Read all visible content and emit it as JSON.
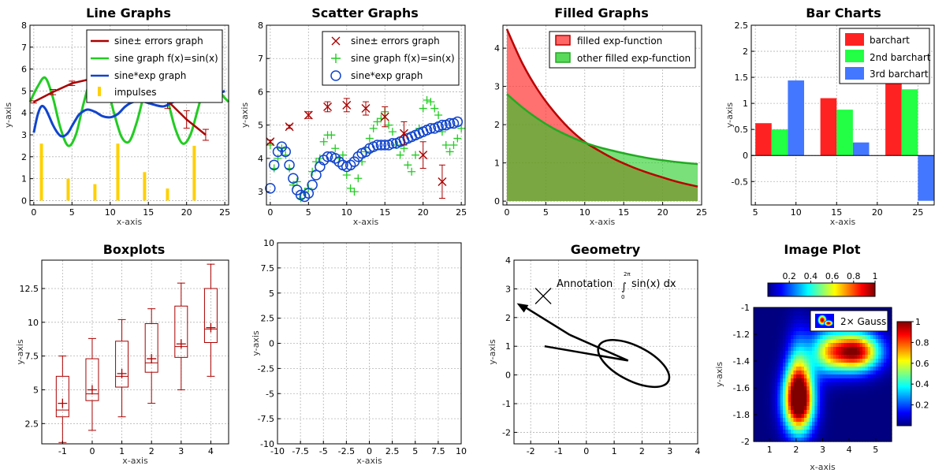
{
  "chart_data": [
    {
      "type": "line",
      "title": "Line Graphs",
      "xlabel": "x-axis",
      "ylabel": "y-axis",
      "xlim": [
        -0.5,
        25.5
      ],
      "ylim": [
        -0.2,
        8
      ],
      "xticks": [
        0,
        5,
        10,
        15,
        20,
        25
      ],
      "yticks": [
        0,
        1,
        2,
        3,
        4,
        5,
        6,
        7,
        8
      ],
      "grid": true,
      "legend": "top-right",
      "legend_entries": [
        "sine± errors graph",
        "sine graph f(x)=sin(x)",
        "sine*exp graph",
        "impulses"
      ],
      "colors": [
        "#aa0000",
        "#22cc22",
        "#1144cc",
        "#ffd000"
      ],
      "series": [
        {
          "name": "sine± errors graph",
          "x": [
            0,
            2.5,
            5,
            7.5,
            10,
            12.5,
            15,
            17.5,
            20,
            22.5
          ],
          "y": [
            4.5,
            4.95,
            5.35,
            5.55,
            5.5,
            5.25,
            4.95,
            4.55,
            3.7,
            3.0
          ],
          "err": [
            0.05,
            0.12,
            0.1,
            0.15,
            0.2,
            0.25,
            0.3,
            0.35,
            0.4,
            0.25
          ]
        },
        {
          "name": "sine graph f(x)=sin(x)",
          "x": [
            -0.5,
            0.5,
            1.5,
            2.5,
            3.5,
            4.5,
            5.5,
            6.5,
            7.5,
            8.5,
            9.5,
            10.5,
            11.5,
            12.5,
            13.5,
            14.5,
            15.5,
            16.5,
            17.5,
            18.5,
            19.5,
            20.5,
            21.5,
            22.5,
            23.5,
            24.5,
            25.5
          ],
          "y": [
            4.5,
            5.2,
            5.6,
            4.7,
            3.3,
            2.5,
            3.0,
            4.4,
            5.6,
            5.9,
            5.3,
            4.0,
            2.9,
            2.7,
            3.6,
            4.9,
            5.7,
            5.6,
            4.6,
            3.3,
            2.6,
            3.0,
            4.2,
            5.4,
            5.6,
            4.9,
            4.5
          ]
        },
        {
          "name": "sine*exp graph",
          "x": [
            0,
            0.5,
            1,
            1.5,
            2,
            2.5,
            3,
            3.5,
            4,
            4.5,
            5,
            5.5,
            6,
            7,
            8,
            9,
            10,
            11,
            12,
            13,
            14,
            15,
            16,
            17,
            18,
            19,
            20,
            21,
            22,
            23,
            24,
            25
          ],
          "y": [
            3.1,
            3.9,
            4.3,
            4.2,
            3.85,
            3.45,
            3.15,
            2.95,
            2.95,
            3.1,
            3.4,
            3.7,
            3.95,
            4.15,
            4.05,
            3.85,
            3.8,
            3.95,
            4.3,
            4.5,
            4.55,
            4.45,
            4.35,
            4.3,
            4.45,
            4.65,
            4.8,
            4.85,
            4.8,
            4.75,
            4.85,
            5.0
          ]
        },
        {
          "name": "impulses",
          "x": [
            1,
            4.5,
            8,
            11,
            14.5,
            17.5,
            21
          ],
          "y": [
            2.6,
            1.0,
            0.75,
            2.6,
            1.3,
            0.55,
            2.5
          ]
        }
      ]
    },
    {
      "type": "scatter",
      "title": "Scatter Graphs",
      "xlabel": "x-axis",
      "ylabel": "y-axis",
      "xlim": [
        -0.5,
        25.5
      ],
      "ylim": [
        2.6,
        8
      ],
      "xticks": [
        0,
        5,
        10,
        15,
        20,
        25
      ],
      "yticks": [
        3,
        4,
        5,
        6,
        7,
        8
      ],
      "grid": true,
      "legend": "top-right",
      "legend_entries": [
        "sine± errors graph",
        "sine graph f(x)=sin(x)",
        "sine*exp graph"
      ],
      "colors": [
        "#aa0000",
        "#22cc22",
        "#1144cc"
      ],
      "series": [
        {
          "name": "sine± errors graph",
          "x": [
            0,
            2.5,
            5,
            7.5,
            10,
            12.5,
            15,
            17.5,
            20,
            22.5
          ],
          "y": [
            4.5,
            4.95,
            5.3,
            5.55,
            5.6,
            5.5,
            5.25,
            4.75,
            4.1,
            3.3
          ],
          "err": [
            0.05,
            0.05,
            0.1,
            0.15,
            0.2,
            0.2,
            0.3,
            0.35,
            0.4,
            0.5
          ]
        },
        {
          "name": "sine graph f(x)=sin(x)",
          "x": [
            0,
            0.5,
            1,
            1.5,
            2,
            2.5,
            3,
            3.5,
            4,
            4.5,
            5,
            5.5,
            6,
            6.5,
            7,
            7.5,
            8,
            8.5,
            9,
            9.5,
            10,
            10.5,
            11,
            11.5,
            12,
            12.5,
            13,
            13.5,
            14,
            14.5,
            15,
            15.5,
            16,
            16.5,
            17,
            17.5,
            18,
            18.5,
            19,
            19.5,
            20,
            20.5,
            21,
            21.5,
            22,
            22.5,
            23,
            23.5,
            24,
            24.5,
            25
          ],
          "y": [
            4.4,
            3.7,
            4.0,
            4.3,
            4.1,
            3.7,
            3.2,
            3.3,
            2.8,
            3.0,
            3.1,
            3.6,
            3.9,
            4.0,
            4.5,
            4.7,
            4.7,
            4.3,
            4.0,
            4.1,
            3.5,
            3.1,
            3.0,
            3.4,
            3.9,
            4.2,
            4.6,
            4.9,
            5.1,
            5.2,
            5.4,
            5.0,
            4.8,
            4.4,
            4.1,
            4.3,
            3.8,
            3.6,
            4.1,
            4.9,
            5.5,
            5.75,
            5.7,
            5.5,
            5.3,
            4.8,
            4.4,
            4.2,
            4.4,
            4.6,
            4.9
          ]
        },
        {
          "name": "sine*exp graph",
          "x": [
            0,
            0.5,
            1,
            1.5,
            2,
            2.5,
            3,
            3.5,
            4,
            4.5,
            5,
            5.5,
            6,
            6.5,
            7,
            7.5,
            8,
            8.5,
            9,
            9.5,
            10,
            10.5,
            11,
            11.5,
            12,
            12.5,
            13,
            13.5,
            14,
            14.5,
            15,
            15.5,
            16,
            16.5,
            17,
            17.5,
            18,
            18.5,
            19,
            19.5,
            20,
            20.5,
            21,
            21.5,
            22,
            22.5,
            23,
            23.5,
            24,
            24.5
          ],
          "y": [
            3.1,
            3.8,
            4.2,
            4.35,
            4.2,
            3.8,
            3.4,
            3.05,
            2.9,
            2.85,
            2.95,
            3.2,
            3.5,
            3.75,
            3.95,
            4.05,
            4.05,
            4.0,
            3.9,
            3.8,
            3.75,
            3.8,
            3.9,
            4.05,
            4.15,
            4.2,
            4.3,
            4.35,
            4.4,
            4.4,
            4.4,
            4.4,
            4.45,
            4.45,
            4.5,
            4.55,
            4.6,
            4.65,
            4.7,
            4.75,
            4.8,
            4.85,
            4.9,
            4.9,
            4.95,
            5.0,
            5.0,
            5.05,
            5.05,
            5.1
          ]
        }
      ]
    },
    {
      "type": "area",
      "title": "Filled Graphs",
      "xlabel": "x-axis",
      "ylabel": "",
      "xlim": [
        -0.5,
        25
      ],
      "ylim": [
        -0.1,
        4.6
      ],
      "xticks": [
        0,
        5,
        10,
        15,
        20,
        25
      ],
      "yticks": [
        0,
        1,
        2,
        3,
        4
      ],
      "grid": true,
      "legend": "top-right",
      "legend_entries": [
        "filled exp-function",
        "other filled exp-function"
      ],
      "colors": [
        "#ff3333",
        "#22cc22"
      ],
      "series": [
        {
          "name": "filled exp-function",
          "x": [
            0,
            2,
            4,
            6,
            8,
            10,
            12,
            14,
            16,
            18,
            20,
            22,
            24.5
          ],
          "y": [
            4.5,
            3.6,
            2.9,
            2.35,
            1.9,
            1.55,
            1.3,
            1.08,
            0.9,
            0.75,
            0.62,
            0.5,
            0.38
          ]
        },
        {
          "name": "other filled exp-function",
          "x": [
            0,
            2,
            4,
            6,
            8,
            10,
            12,
            14,
            16,
            18,
            20,
            22,
            24.5
          ],
          "y": [
            2.8,
            2.45,
            2.15,
            1.9,
            1.7,
            1.53,
            1.4,
            1.3,
            1.21,
            1.13,
            1.07,
            1.02,
            0.97
          ]
        }
      ]
    },
    {
      "type": "bar",
      "title": "Bar Charts",
      "xlabel": "x-axis",
      "ylabel": "y-axis",
      "xlim": [
        4.5,
        27
      ],
      "ylim": [
        -0.95,
        2.5
      ],
      "xticks": [
        5,
        10,
        15,
        20,
        25
      ],
      "yticks": [
        -0.5,
        0,
        0.5,
        1,
        1.5,
        2,
        2.5
      ],
      "grid": true,
      "legend": "top-right",
      "legend_entries": [
        "barchart",
        "2nd barchart",
        "3rd barchart"
      ],
      "colors": [
        "#ff2222",
        "#22ff44",
        "#4477ff"
      ],
      "series": [
        {
          "name": "barchart",
          "x": [
            6,
            14,
            22
          ],
          "values": [
            0.62,
            1.1,
            1.4
          ]
        },
        {
          "name": "2nd barchart",
          "x": [
            8,
            16,
            24
          ],
          "values": [
            0.5,
            0.88,
            1.27
          ]
        },
        {
          "name": "3rd barchart",
          "x": [
            10,
            18,
            26
          ],
          "values": [
            1.44,
            0.25,
            -0.87
          ]
        }
      ]
    },
    {
      "type": "boxplot",
      "title": "Boxplots",
      "xlabel": "x-axis",
      "ylabel": "y-axis",
      "xlim": [
        -1.7,
        4.6
      ],
      "ylim": [
        1,
        14.6
      ],
      "xticks": [
        -1,
        0,
        1,
        2,
        3,
        4
      ],
      "yticks": [
        2.5,
        5,
        7.5,
        10,
        12.5
      ],
      "grid": true,
      "colors": [
        "#aa0000"
      ],
      "boxes": [
        {
          "x": -1,
          "min": 1.1,
          "q1": 3.0,
          "median": 3.5,
          "q3": 6.0,
          "max": 7.5,
          "mean": 4.0
        },
        {
          "x": 0,
          "min": 2.0,
          "q1": 4.2,
          "median": 4.7,
          "q3": 7.3,
          "max": 8.8,
          "mean": 5.0
        },
        {
          "x": 1,
          "min": 3.0,
          "q1": 5.2,
          "median": 6.0,
          "q3": 8.6,
          "max": 10.2,
          "mean": 6.2
        },
        {
          "x": 2,
          "min": 4.0,
          "q1": 6.3,
          "median": 7.0,
          "q3": 9.9,
          "max": 11.0,
          "mean": 7.3
        },
        {
          "x": 3,
          "min": 5.0,
          "q1": 7.4,
          "median": 8.2,
          "q3": 11.2,
          "max": 12.9,
          "mean": 8.4
        },
        {
          "x": 4,
          "min": 6.0,
          "q1": 8.5,
          "median": 9.5,
          "q3": 12.5,
          "max": 14.3,
          "mean": 9.6
        }
      ]
    },
    {
      "type": "line",
      "title": "",
      "xlabel": "x-axis",
      "ylabel": "y-axis",
      "xlim": [
        -10,
        10
      ],
      "ylim": [
        -10,
        10
      ],
      "xticks": [
        -10,
        -7.5,
        -5,
        -2.5,
        0,
        2.5,
        5,
        7.5,
        10
      ],
      "yticks": [
        -10,
        -7.5,
        -5,
        -2.5,
        0,
        2.5,
        5,
        7.5,
        10
      ],
      "grid": true,
      "series": []
    },
    {
      "type": "geometry",
      "title": "Geometry",
      "xlabel": "",
      "ylabel": "y-axis",
      "xlim": [
        -2.6,
        4
      ],
      "ylim": [
        -2.4,
        4
      ],
      "xticks": [
        -2,
        -1,
        0,
        1,
        2,
        3,
        4
      ],
      "yticks": [
        -2,
        -1,
        0,
        1,
        2,
        3,
        4
      ],
      "grid": true,
      "annotation": "Annotation",
      "annotation_formula": "sin(x) dx",
      "integral_upper": "2π",
      "integral_lower": "0",
      "colors": [
        "#000000"
      ]
    },
    {
      "type": "heatmap",
      "title": "Image Plot",
      "xlabel": "x-axis",
      "ylabel": "y-axis",
      "xlim": [
        0.4,
        5.6
      ],
      "ylim": [
        -2,
        -1
      ],
      "xticks": [
        1,
        2,
        3,
        4,
        5
      ],
      "yticks": [
        -2,
        -1.8,
        -1.6,
        -1.4,
        -1.2,
        -1
      ],
      "top_colorbar_ticks": [
        0.2,
        0.4,
        0.6,
        0.8,
        1
      ],
      "side_colorbar_ticks": [
        0.2,
        0.4,
        0.6,
        0.8,
        1
      ],
      "legend_entries": [
        "2× Gauss"
      ],
      "gaussians": [
        {
          "cx": 2.1,
          "cy": -1.7,
          "sx": 0.4,
          "sy": 0.16,
          "amp": 1.0
        },
        {
          "cx": 4.2,
          "cy": -1.33,
          "sx": 0.65,
          "sy": 0.1,
          "amp": 1.0
        }
      ],
      "bridge_strength": 0.42,
      "colormap": [
        "#000080",
        "#0000ff",
        "#00ffff",
        "#ffff00",
        "#ff0000",
        "#800000"
      ]
    }
  ]
}
